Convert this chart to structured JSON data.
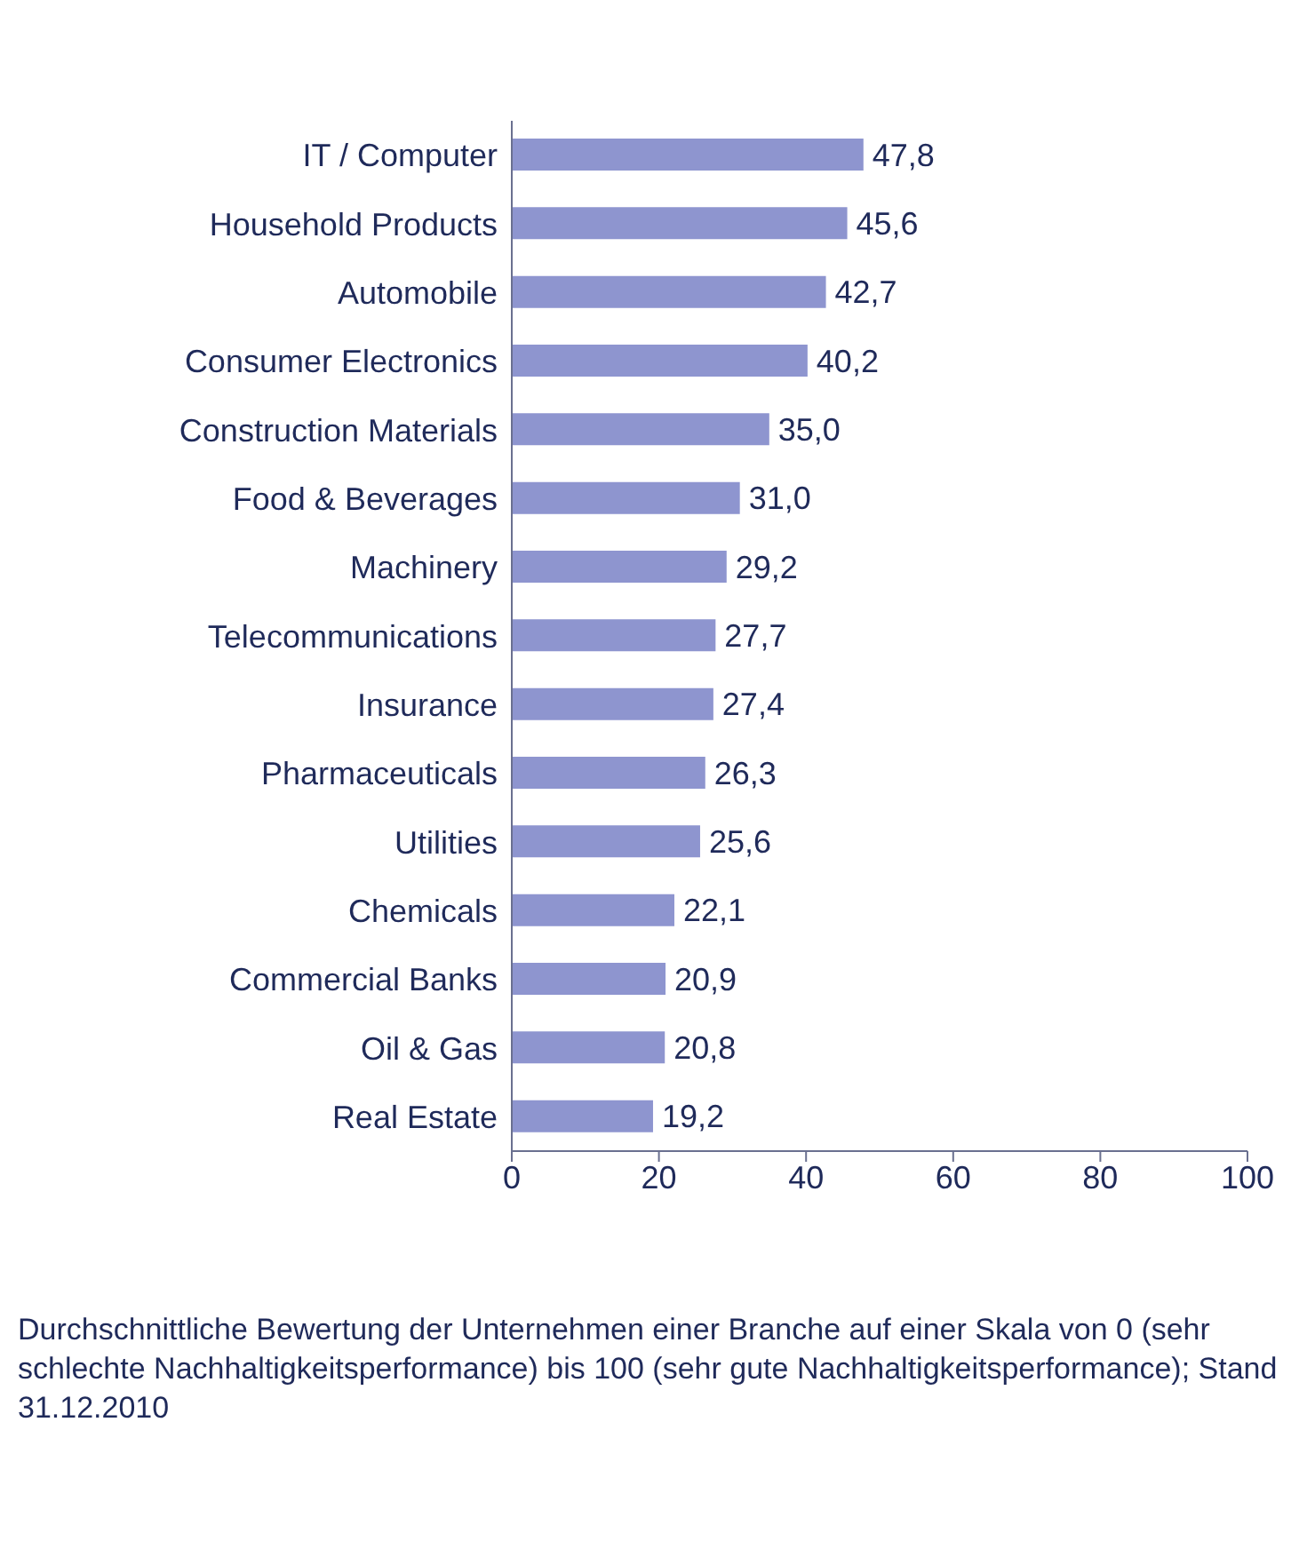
{
  "chart_data": {
    "type": "bar",
    "orientation": "horizontal",
    "categories": [
      "IT / Computer",
      "Household Products",
      "Automobile",
      "Consumer Electronics",
      "Construction Materials",
      "Food & Beverages",
      "Machinery",
      "Telecommunications",
      "Insurance",
      "Pharmaceuticals",
      "Utilities",
      "Chemicals",
      "Commercial Banks",
      "Oil & Gas",
      "Real Estate"
    ],
    "values": [
      47.8,
      45.6,
      42.7,
      40.2,
      35.0,
      31.0,
      29.2,
      27.7,
      27.4,
      26.3,
      25.6,
      22.1,
      20.9,
      20.8,
      19.2
    ],
    "value_labels": [
      "47,8",
      "45,6",
      "42,7",
      "40,2",
      "35,0",
      "31,0",
      "29,2",
      "27,7",
      "27,4",
      "26,3",
      "25,6",
      "22,1",
      "20,9",
      "20,8",
      "19,2"
    ],
    "color": "#8e95cf",
    "xlim": [
      0,
      100
    ],
    "xticks": [
      0,
      20,
      40,
      60,
      80,
      100
    ],
    "grid": false,
    "legend": false,
    "annotations": [
      "Durchschnittliche Bewertung der Unternehmen einer Branche auf einer Skala von 0 (sehr schlechte Nachhaltigkeitsperformance) bis 100 (sehr gute Nachhaltigkeitsperformance); Stand 31.12.2010"
    ]
  }
}
